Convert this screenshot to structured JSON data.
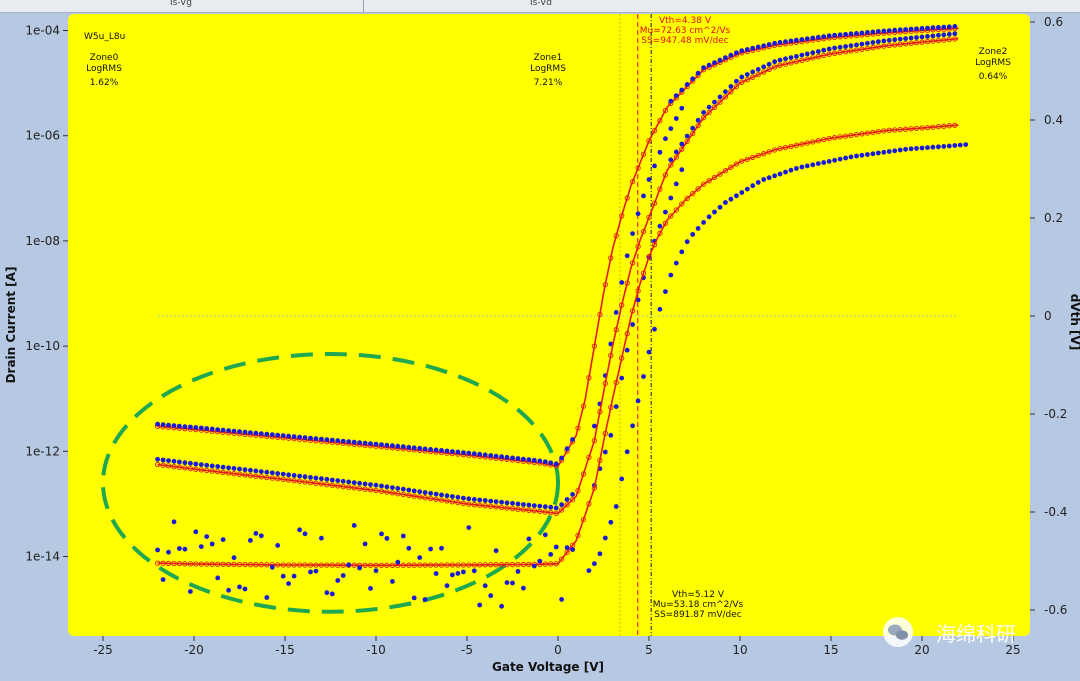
{
  "window": {
    "tabs": [
      "Is-Vg",
      "Is-Vd"
    ]
  },
  "chart_data": {
    "type": "scatter",
    "title": "",
    "device_label": "W5u_L8u",
    "xlabel": "Gate Voltage [V]",
    "ylabel": "Drain Current [A]",
    "y2label": "dVth [V]",
    "xlim": [
      -27,
      26
    ],
    "ylim_log10": [
      -15.9,
      -3.8
    ],
    "yscale": "log",
    "y2lim": [
      -0.64,
      0.62
    ],
    "xticks": [
      -25,
      -20,
      -15,
      -10,
      -5,
      0,
      5,
      10,
      15,
      20,
      25
    ],
    "yticks": [
      "1e-04",
      "1e-06",
      "1e-08",
      "1e-10",
      "1e-12",
      "1e-14"
    ],
    "y2ticks": [
      "0.6",
      "0.4",
      "0.2",
      "0",
      "-0.2",
      "-0.4",
      "-0.6"
    ],
    "grid": false,
    "colors": {
      "plot_bg": "#ffff00",
      "measured": "#1a1ad8",
      "fit": "#e21b1b",
      "vth_line_1": "#ff2a2a",
      "vth_line_2": "#3a3a3a",
      "ref_line": "#e0b400",
      "highlight_ellipse": "#1fa84f"
    },
    "series": [
      {
        "name": "",
        "x": [
          -22,
          -20,
          -15,
          -10,
          -5,
          -1,
          0,
          1,
          1.5,
          2,
          2.5,
          3,
          3.5,
          4,
          5,
          6,
          8,
          10,
          12,
          15,
          18,
          20,
          22
        ],
        "y": [
          3e-12,
          2.6e-12,
          1.8e-12,
          1.25e-12,
          8.5e-13,
          6e-13,
          5.2e-13,
          2e-12,
          1e-11,
          1e-10,
          1e-09,
          7e-09,
          3e-08,
          1.1e-07,
          8e-07,
          3.5e-06,
          1.8e-05,
          3.7e-05,
          5.3e-05,
          7.3e-05,
          9e-05,
          0.0001,
          0.00011
        ]
      },
      {
        "name": "",
        "x": [
          -22,
          -20,
          -15,
          -10,
          -5,
          -1,
          0,
          1,
          2,
          2.5,
          3,
          3.5,
          4,
          4.5,
          5,
          6,
          8,
          10,
          12,
          15,
          18,
          20,
          22
        ],
        "y": [
          5.6e-13,
          4.6e-13,
          2.9e-13,
          1.8e-13,
          1e-13,
          7.2e-14,
          6.6e-14,
          1.4e-13,
          1.6e-12,
          1.3e-11,
          1e-10,
          6e-10,
          3e-09,
          1e-08,
          2.8e-08,
          2.2e-07,
          2.2e-06,
          1e-05,
          2.1e-05,
          3.6e-05,
          5.1e-05,
          6e-05,
          7e-05
        ]
      },
      {
        "name": "",
        "x": [
          -22,
          -20,
          -15,
          -10,
          -5,
          -1,
          0,
          1,
          2,
          2.5,
          3,
          4,
          4.5,
          5,
          5.5,
          6,
          7,
          8,
          10,
          12,
          15,
          18,
          20,
          22
        ],
        "y": [
          7.5e-15,
          7.2e-15,
          6.9e-15,
          6.8e-15,
          6.9e-15,
          7.1e-15,
          7.3e-15,
          2e-14,
          2e-13,
          1.5e-12,
          1e-11,
          3.5e-10,
          1.5e-09,
          5e-09,
          1.2e-08,
          2.5e-08,
          6e-08,
          1.2e-07,
          3.2e-07,
          5.5e-07,
          9e-07,
          1.25e-06,
          1.4e-06,
          1.6e-06
        ]
      }
    ],
    "vlines": {
      "vth_1": 4.38,
      "vth_2": 5.12,
      "ref": 3.4
    },
    "hline_y2": 0,
    "zones": [
      {
        "name": "Zone0",
        "metric": "LogRMS",
        "value": "1.62%"
      },
      {
        "name": "Zone1",
        "metric": "LogRMS",
        "value": "7.21%"
      },
      {
        "name": "Zone2",
        "metric": "LogRMS",
        "value": "0.64%"
      }
    ],
    "annotations": {
      "fit1": [
        "Vth=4.38 V",
        "Mu=72.63 cm^2/Vs",
        "SS=947.48 mV/dec"
      ],
      "fit2": [
        "Vth=5.12 V",
        "Mu=53.18 cm^2/Vs",
        "SS=891.87 mV/dec"
      ]
    },
    "highlight": {
      "shape": "ellipse",
      "style": "dashed",
      "center_x": -12.5,
      "center_log10_y": -12.6,
      "radius_x": 12.5,
      "radius_log10_y": 2.45
    }
  },
  "watermark": {
    "text": "海绵科研",
    "icon": "wechat-icon"
  }
}
